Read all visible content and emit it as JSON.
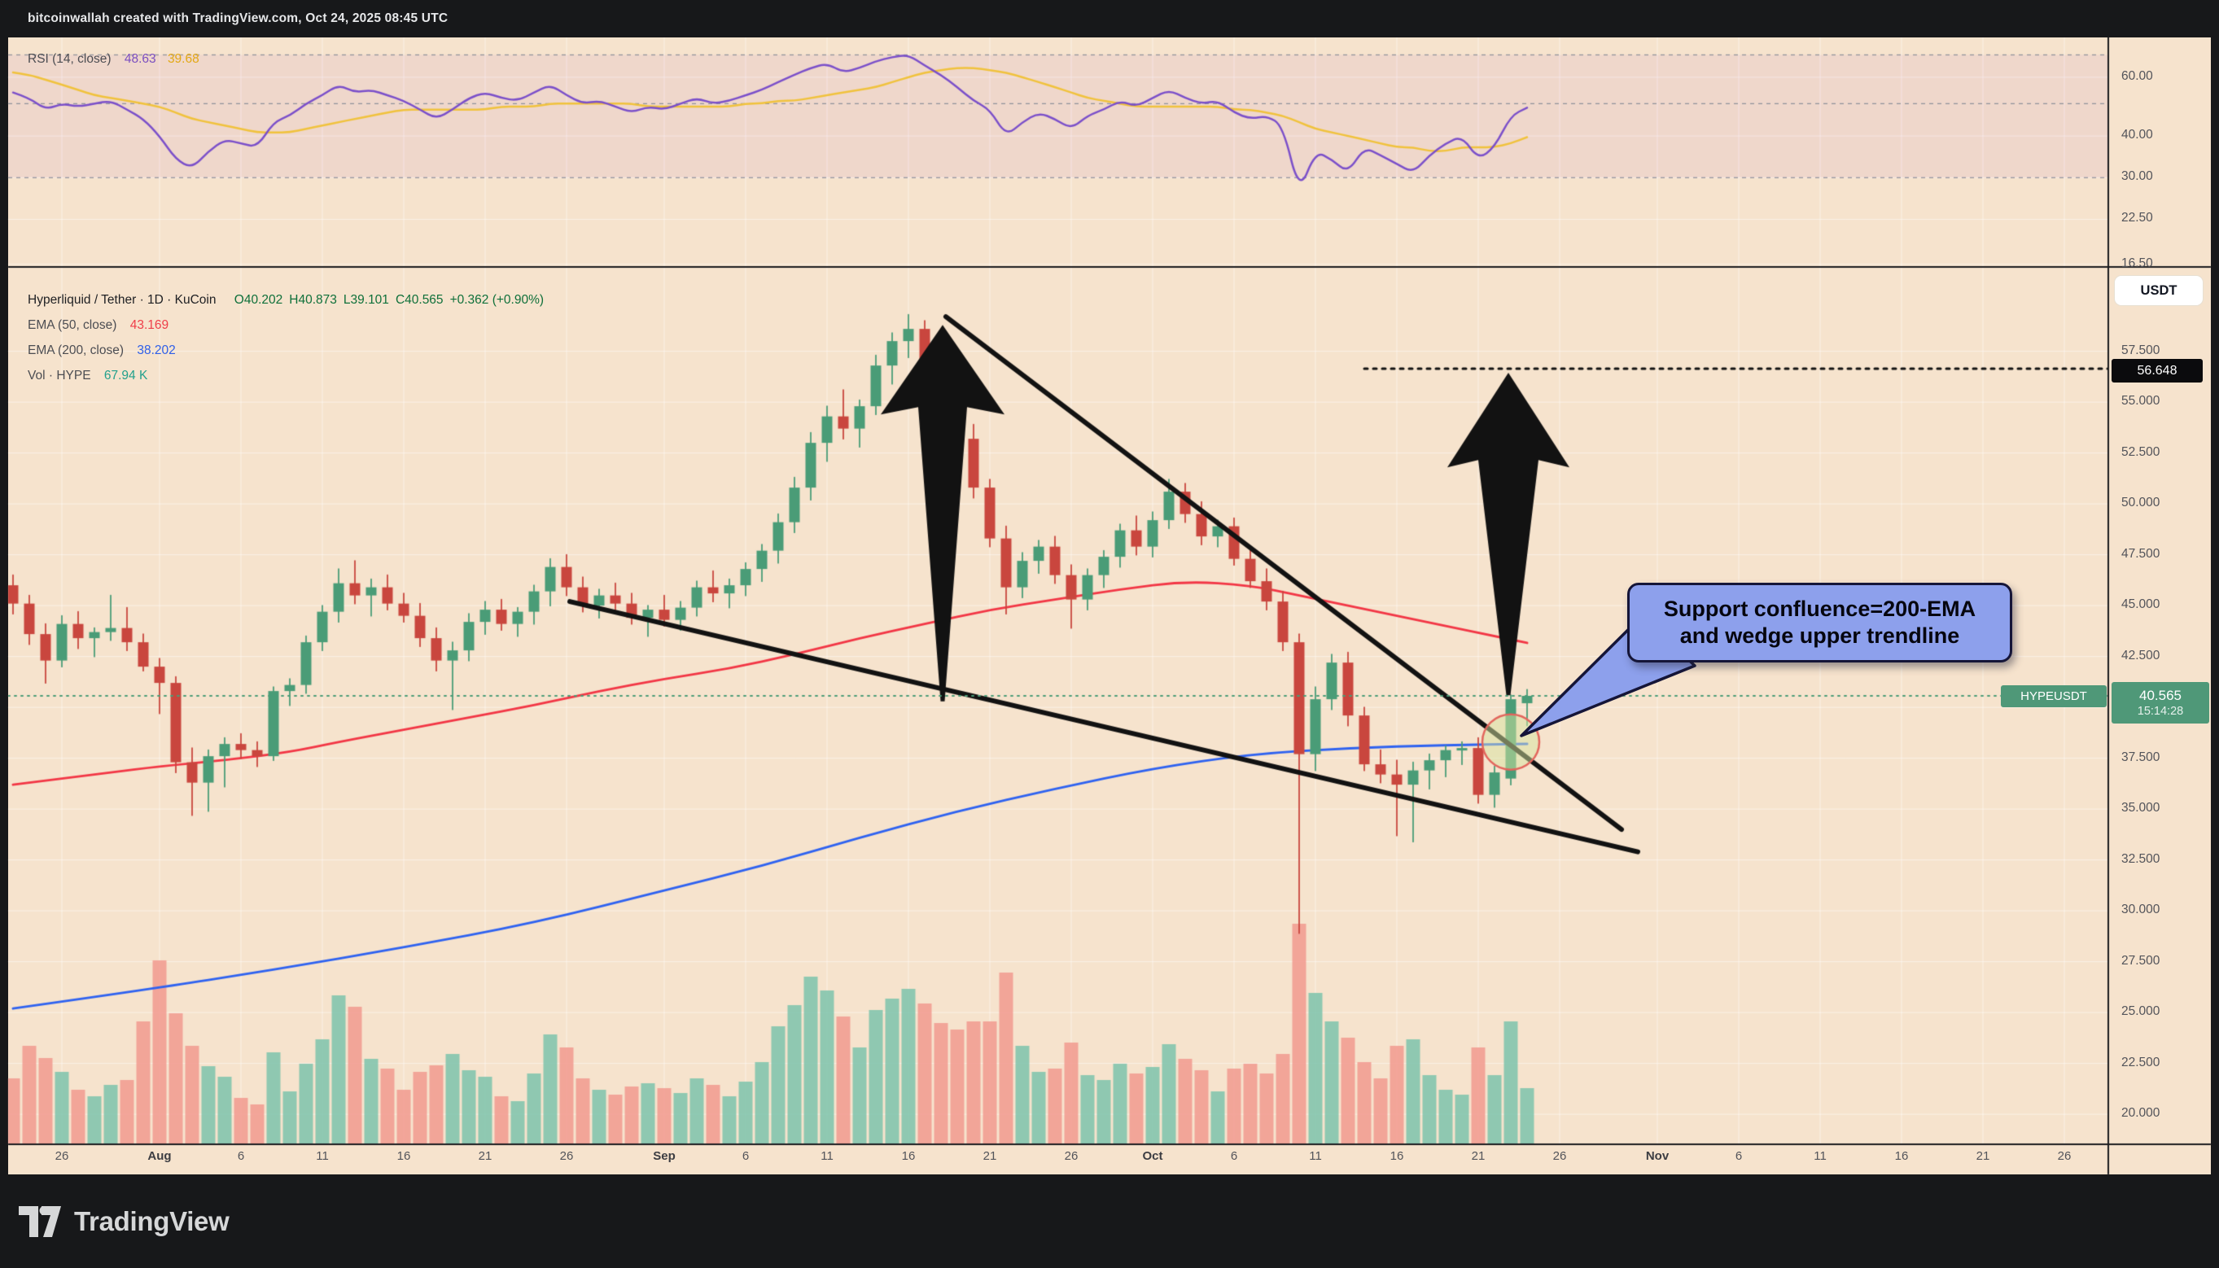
{
  "header": {
    "title": "bitcoinwallah created with TradingView.com, Oct 24, 2025 08:45 UTC"
  },
  "rsi_pane": {
    "legend_label": "RSI (14, close)",
    "rsi_value": "48.63",
    "ma_value": "39.68",
    "levels": {
      "upper": 70,
      "middle": 50,
      "lower": 30
    },
    "scale_ticks": [
      {
        "label": "60.00",
        "value": 60
      },
      {
        "label": "40.00",
        "value": 40
      },
      {
        "label": "30.00",
        "value": 30
      },
      {
        "label": "22.50",
        "value": 22.5
      },
      {
        "label": "16.50",
        "value": 16.5
      }
    ]
  },
  "main_pane": {
    "legend_title": "Hyperliquid / Tether · 1D · KuCoin",
    "ohlc": {
      "o_label": "O",
      "o": "40.202",
      "h_label": "H",
      "h": "40.873",
      "l_label": "L",
      "l": "39.101",
      "c_label": "C",
      "c": "40.565",
      "change": "+0.362 (+0.90%)"
    },
    "ema50_label": "EMA (50, close)",
    "ema50_value": "43.169",
    "ema200_label": "EMA (200, close)",
    "ema200_value": "38.202",
    "vol_label": "Vol · HYPE",
    "vol_value": "67.94 K",
    "currency_button": "USDT",
    "price_labels": {
      "target": "56.648",
      "last": "40.565",
      "last_time": "15:14:28",
      "symbol_tag": "HYPEUSDT"
    },
    "scale_ticks": [
      {
        "label": "57.500",
        "value": 57.5
      },
      {
        "label": "55.000",
        "value": 55
      },
      {
        "label": "52.500",
        "value": 52.5
      },
      {
        "label": "50.000",
        "value": 50
      },
      {
        "label": "47.500",
        "value": 47.5
      },
      {
        "label": "45.000",
        "value": 45
      },
      {
        "label": "42.500",
        "value": 42.5
      },
      {
        "label": "37.500",
        "value": 37.5
      },
      {
        "label": "35.000",
        "value": 35
      },
      {
        "label": "32.500",
        "value": 32.5
      },
      {
        "label": "30.000",
        "value": 30
      },
      {
        "label": "27.500",
        "value": 27.5
      },
      {
        "label": "25.000",
        "value": 25
      },
      {
        "label": "22.500",
        "value": 22.5
      },
      {
        "label": "20.000",
        "value": 20
      }
    ],
    "grid_values": [
      57.5,
      55,
      52.5,
      50,
      47.5,
      45,
      42.5,
      40,
      37.5,
      35,
      32.5,
      30,
      27.5,
      25,
      22.5,
      20
    ]
  },
  "callout": {
    "line1": "Support confluence=200-EMA",
    "line2": "and wedge upper trendline"
  },
  "time_axis": {
    "ticks": [
      {
        "label": "26",
        "i": 3
      },
      {
        "label": "Aug",
        "i": 9,
        "major": true
      },
      {
        "label": "6",
        "i": 14
      },
      {
        "label": "11",
        "i": 19
      },
      {
        "label": "16",
        "i": 24
      },
      {
        "label": "21",
        "i": 29
      },
      {
        "label": "26",
        "i": 34
      },
      {
        "label": "Sep",
        "i": 40,
        "major": true
      },
      {
        "label": "6",
        "i": 45
      },
      {
        "label": "11",
        "i": 50
      },
      {
        "label": "16",
        "i": 55
      },
      {
        "label": "21",
        "i": 60
      },
      {
        "label": "26",
        "i": 65
      },
      {
        "label": "Oct",
        "i": 70,
        "major": true
      },
      {
        "label": "6",
        "i": 75
      },
      {
        "label": "11",
        "i": 80
      },
      {
        "label": "16",
        "i": 85
      },
      {
        "label": "21",
        "i": 90
      },
      {
        "label": "26",
        "i": 95
      },
      {
        "label": "Nov",
        "i": 101,
        "major": true
      },
      {
        "label": "6",
        "i": 106
      },
      {
        "label": "11",
        "i": 111
      },
      {
        "label": "16",
        "i": 116
      },
      {
        "label": "21",
        "i": 121
      },
      {
        "label": "26",
        "i": 126
      }
    ]
  },
  "footer": {
    "brand": "TradingView"
  },
  "colors": {
    "frame": "#17181a",
    "chart_bg": "#f6e3cd",
    "grid": "rgba(255,255,255,0.5)",
    "candle_up": "#4a9c77",
    "candle_down": "#c9463e",
    "vol_up": "rgba(124,195,172,0.85)",
    "vol_down": "rgba(242,157,146,0.9)",
    "ema50": "#f23645",
    "ema200": "#2e62f0",
    "rsi_line": "#7a4fc9",
    "rsi_ma_line": "#f0c23c",
    "rsi_band": "rgba(171,71,188,0.08)",
    "rsi_dash": "#8a8d98",
    "current_price": "#4a9c77",
    "annotation_black": "#121212",
    "callout_fill": "#8da0ec",
    "callout_border": "#151538",
    "label_green_bg": "#4f9878",
    "label_black_bg": "#0b0b0d"
  },
  "chart_data": {
    "type": "candlestick",
    "symbol": "HYPEUSDT",
    "exchange": "KuCoin",
    "interval": "1D",
    "start_date": "2025-07-23",
    "end_date": "2025-10-24",
    "title": "Hyperliquid / Tether · 1D · KuCoin",
    "ylim_main": [
      19,
      61
    ],
    "price_step": 2.5,
    "grid": true,
    "candles": [
      [
        46.0,
        46.5,
        44.6,
        45.1,
        80
      ],
      [
        45.1,
        45.5,
        43.1,
        43.6,
        120
      ],
      [
        43.6,
        44.1,
        41.2,
        42.3,
        105
      ],
      [
        42.3,
        44.5,
        42.0,
        44.1,
        88
      ],
      [
        44.1,
        44.7,
        42.9,
        43.4,
        66
      ],
      [
        43.4,
        43.9,
        42.5,
        43.7,
        58
      ],
      [
        43.7,
        45.5,
        43.3,
        43.9,
        72
      ],
      [
        43.9,
        44.9,
        42.8,
        43.2,
        78
      ],
      [
        43.2,
        43.6,
        41.8,
        42.0,
        150
      ],
      [
        42.0,
        42.4,
        39.7,
        41.2,
        225
      ],
      [
        41.2,
        41.5,
        36.8,
        37.3,
        160
      ],
      [
        37.3,
        38.0,
        34.7,
        36.3,
        120
      ],
      [
        36.3,
        37.9,
        34.9,
        37.6,
        95
      ],
      [
        37.6,
        38.5,
        36.1,
        38.2,
        82
      ],
      [
        38.2,
        38.7,
        37.5,
        37.9,
        56
      ],
      [
        37.9,
        38.3,
        37.1,
        37.6,
        48
      ],
      [
        37.6,
        41.0,
        37.4,
        40.8,
        112
      ],
      [
        40.8,
        41.4,
        40.1,
        41.1,
        64
      ],
      [
        41.1,
        43.5,
        40.7,
        43.2,
        98
      ],
      [
        43.2,
        45.0,
        42.8,
        44.7,
        128
      ],
      [
        44.7,
        46.8,
        44.2,
        46.1,
        182
      ],
      [
        46.1,
        47.2,
        45.1,
        45.5,
        168
      ],
      [
        45.5,
        46.3,
        44.5,
        45.9,
        104
      ],
      [
        45.9,
        46.5,
        44.8,
        45.1,
        92
      ],
      [
        45.1,
        45.6,
        44.2,
        44.5,
        66
      ],
      [
        44.5,
        45.1,
        43.0,
        43.4,
        88
      ],
      [
        43.4,
        43.9,
        41.8,
        42.3,
        96
      ],
      [
        42.3,
        43.2,
        39.9,
        42.8,
        110
      ],
      [
        42.8,
        44.6,
        42.3,
        44.2,
        90
      ],
      [
        44.2,
        45.2,
        43.6,
        44.8,
        82
      ],
      [
        44.8,
        45.3,
        43.8,
        44.1,
        58
      ],
      [
        44.1,
        44.9,
        43.5,
        44.7,
        52
      ],
      [
        44.7,
        46.0,
        44.1,
        45.7,
        86
      ],
      [
        45.7,
        47.3,
        45.0,
        46.9,
        134
      ],
      [
        46.9,
        47.5,
        45.5,
        45.9,
        118
      ],
      [
        45.9,
        46.4,
        44.7,
        45.0,
        80
      ],
      [
        45.0,
        45.8,
        44.4,
        45.5,
        66
      ],
      [
        45.5,
        46.1,
        44.8,
        45.1,
        60
      ],
      [
        45.1,
        45.6,
        44.1,
        44.4,
        70
      ],
      [
        44.4,
        45.0,
        43.5,
        44.8,
        74
      ],
      [
        44.8,
        45.5,
        44.0,
        44.3,
        68
      ],
      [
        44.3,
        45.2,
        43.8,
        44.9,
        62
      ],
      [
        44.9,
        46.2,
        44.5,
        45.9,
        80
      ],
      [
        45.9,
        46.7,
        45.2,
        45.6,
        72
      ],
      [
        45.6,
        46.3,
        44.9,
        46.0,
        58
      ],
      [
        46.0,
        47.1,
        45.5,
        46.8,
        76
      ],
      [
        46.8,
        48.0,
        46.2,
        47.7,
        100
      ],
      [
        47.7,
        49.5,
        47.1,
        49.1,
        144
      ],
      [
        49.1,
        51.3,
        48.6,
        50.8,
        170
      ],
      [
        50.8,
        53.5,
        50.2,
        53.0,
        205
      ],
      [
        53.0,
        54.8,
        52.1,
        54.3,
        188
      ],
      [
        54.3,
        55.6,
        53.2,
        53.7,
        156
      ],
      [
        53.7,
        55.1,
        52.8,
        54.8,
        118
      ],
      [
        54.8,
        57.3,
        54.4,
        56.8,
        164
      ],
      [
        56.8,
        58.4,
        55.9,
        58.0,
        178
      ],
      [
        58.0,
        59.3,
        57.2,
        58.6,
        190
      ],
      [
        58.6,
        59.0,
        56.1,
        56.5,
        172
      ],
      [
        56.5,
        57.4,
        54.6,
        55.0,
        148
      ],
      [
        55.0,
        55.7,
        52.8,
        53.2,
        140
      ],
      [
        53.2,
        53.9,
        50.3,
        50.8,
        150
      ],
      [
        50.8,
        51.2,
        47.9,
        48.3,
        150
      ],
      [
        48.3,
        48.9,
        44.6,
        45.9,
        210
      ],
      [
        45.9,
        47.6,
        45.4,
        47.2,
        120
      ],
      [
        47.2,
        48.2,
        46.6,
        47.9,
        88
      ],
      [
        47.9,
        48.4,
        46.1,
        46.5,
        92
      ],
      [
        46.5,
        47.0,
        43.9,
        45.3,
        124
      ],
      [
        45.3,
        46.8,
        44.8,
        46.5,
        84
      ],
      [
        46.5,
        47.7,
        45.9,
        47.4,
        78
      ],
      [
        47.4,
        49.0,
        46.9,
        48.7,
        98
      ],
      [
        48.7,
        49.4,
        47.5,
        47.9,
        86
      ],
      [
        47.9,
        49.6,
        47.4,
        49.2,
        94
      ],
      [
        49.2,
        51.2,
        48.8,
        50.6,
        122
      ],
      [
        50.6,
        51.0,
        49.1,
        49.5,
        104
      ],
      [
        49.5,
        50.1,
        48.0,
        48.4,
        90
      ],
      [
        48.4,
        49.2,
        47.9,
        48.9,
        64
      ],
      [
        48.9,
        49.3,
        47.0,
        47.3,
        92
      ],
      [
        47.3,
        47.9,
        45.9,
        46.2,
        98
      ],
      [
        46.2,
        46.8,
        44.8,
        45.2,
        86
      ],
      [
        45.2,
        45.7,
        42.8,
        43.2,
        110
      ],
      [
        43.2,
        43.6,
        28.9,
        37.7,
        270
      ],
      [
        37.7,
        41.0,
        36.9,
        40.4,
        185
      ],
      [
        40.4,
        42.6,
        39.9,
        42.2,
        150
      ],
      [
        42.2,
        42.7,
        39.1,
        39.6,
        130
      ],
      [
        39.6,
        40.0,
        36.9,
        37.2,
        100
      ],
      [
        37.2,
        37.9,
        36.3,
        36.7,
        80
      ],
      [
        36.7,
        37.4,
        33.7,
        36.2,
        120
      ],
      [
        36.2,
        37.3,
        33.4,
        36.9,
        128
      ],
      [
        36.9,
        37.7,
        36.0,
        37.4,
        84
      ],
      [
        37.4,
        38.1,
        36.6,
        37.9,
        66
      ],
      [
        37.9,
        38.3,
        37.2,
        38.0,
        60
      ],
      [
        38.0,
        38.5,
        35.3,
        35.7,
        118
      ],
      [
        35.7,
        37.1,
        35.1,
        36.8,
        84
      ],
      [
        36.5,
        40.6,
        36.2,
        40.4,
        150
      ],
      [
        40.202,
        40.873,
        39.101,
        40.565,
        68
      ]
    ],
    "rsi": [
      54,
      52,
      48,
      50,
      49,
      50,
      51,
      48,
      45,
      40,
      34,
      32,
      36,
      39,
      38,
      37,
      44,
      46,
      50,
      53,
      57,
      54,
      55,
      53,
      51,
      48,
      45,
      48,
      52,
      54,
      52,
      51,
      54,
      57,
      53,
      50,
      51,
      49,
      47,
      49,
      48,
      50,
      52,
      50,
      51,
      53,
      55,
      58,
      61,
      64,
      66,
      62,
      64,
      67,
      69,
      70,
      65,
      61,
      56,
      51,
      48,
      40,
      44,
      47,
      45,
      42,
      46,
      48,
      51,
      49,
      52,
      55,
      52,
      50,
      51,
      47,
      45,
      46,
      43,
      27,
      36,
      34,
      31,
      37,
      35,
      33,
      31,
      35,
      38,
      40,
      34,
      37,
      46,
      48.63
    ],
    "rsi_ma": [
      62,
      61,
      59,
      57,
      55,
      53,
      52,
      51,
      50,
      49,
      47,
      45,
      44,
      43,
      42,
      41,
      41,
      41,
      42,
      43,
      44,
      45,
      46,
      47,
      48,
      48,
      48,
      48,
      48,
      48,
      49,
      49,
      49,
      50,
      50,
      50,
      50,
      50,
      50,
      49,
      49,
      49,
      49,
      49,
      49,
      50,
      50,
      51,
      51,
      52,
      53,
      54,
      55,
      56,
      58,
      60,
      62,
      63,
      64,
      64,
      63,
      62,
      60,
      58,
      56,
      54,
      52,
      51,
      50,
      49,
      49,
      49,
      49,
      49,
      49,
      48,
      48,
      47,
      46,
      44,
      42,
      41,
      40,
      39,
      38,
      37,
      37,
      36,
      36,
      37,
      37,
      37,
      38,
      39.68
    ],
    "ema50_points": [
      [
        0,
        36.2
      ],
      [
        6,
        36.8
      ],
      [
        9,
        37.1
      ],
      [
        13,
        37.4
      ],
      [
        17,
        37.8
      ],
      [
        20,
        38.3
      ],
      [
        24,
        38.9
      ],
      [
        28,
        39.5
      ],
      [
        32,
        40.1
      ],
      [
        36,
        40.8
      ],
      [
        40,
        41.4
      ],
      [
        44,
        41.9
      ],
      [
        48,
        42.6
      ],
      [
        52,
        43.4
      ],
      [
        56,
        44.1
      ],
      [
        60,
        44.8
      ],
      [
        64,
        45.3
      ],
      [
        68,
        45.8
      ],
      [
        72,
        46.2
      ],
      [
        76,
        46.0
      ],
      [
        79,
        45.5
      ],
      [
        82,
        45.0
      ],
      [
        85,
        44.5
      ],
      [
        88,
        44.0
      ],
      [
        91,
        43.5
      ],
      [
        93,
        43.169
      ]
    ],
    "ema200_points": [
      [
        0,
        25.2
      ],
      [
        8,
        26.1
      ],
      [
        16,
        27.1
      ],
      [
        24,
        28.2
      ],
      [
        32,
        29.4
      ],
      [
        40,
        31.0
      ],
      [
        46,
        32.2
      ],
      [
        52,
        33.6
      ],
      [
        58,
        34.9
      ],
      [
        64,
        36.0
      ],
      [
        70,
        37.0
      ],
      [
        76,
        37.7
      ],
      [
        82,
        38.0
      ],
      [
        88,
        38.15
      ],
      [
        93,
        38.202
      ]
    ],
    "annotations": {
      "current_price_line": 40.565,
      "target_line": {
        "price": 56.648,
        "from_i": 83
      },
      "wedge_upper": {
        "from": [
          57.3,
          59.2
        ],
        "to": [
          98.8,
          34.0
        ]
      },
      "wedge_lower": {
        "from": [
          34.2,
          45.2
        ],
        "to": [
          99.8,
          32.9
        ]
      },
      "arrows": [
        {
          "i": 57.1,
          "tip": 58.8,
          "head_base": 54.4,
          "tail": 40.3,
          "hw_days": 3.8,
          "body_days": 1.5
        },
        {
          "i": 91.85,
          "tip": 56.45,
          "head_base": 51.8,
          "tail": 40.6,
          "hw_days": 3.75,
          "body_days": 1.85
        }
      ],
      "highlight_circle": {
        "i": 92,
        "price": 38.3,
        "rx_days": 1.75,
        "ry_price": 1.36
      }
    }
  }
}
